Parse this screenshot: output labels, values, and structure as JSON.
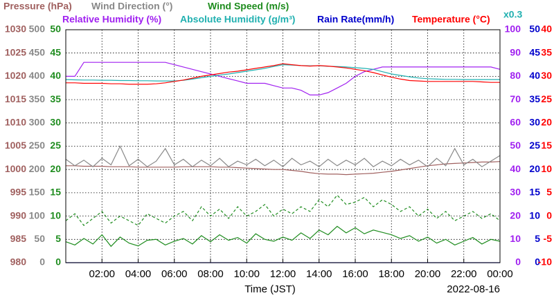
{
  "chart_data": {
    "type": "line",
    "x_label": "Time (JST)",
    "date": "2022-08-16",
    "axis_note": "x0.3",
    "grid": true,
    "x": [
      0,
      0.5,
      1,
      1.5,
      2,
      2.5,
      3,
      3.5,
      4,
      4.5,
      5,
      5.5,
      6,
      6.5,
      7,
      7.5,
      8,
      8.5,
      9,
      9.5,
      10,
      10.5,
      11,
      11.5,
      12,
      12.5,
      13,
      13.5,
      14,
      14.5,
      15,
      15.5,
      16,
      16.5,
      17,
      17.5,
      18,
      18.5,
      19,
      19.5,
      20,
      20.5,
      21,
      21.5,
      22,
      22.5,
      23,
      23.5,
      24
    ],
    "xlim": [
      0,
      24
    ],
    "xticks": [
      {
        "value": 2,
        "label": "02:00"
      },
      {
        "value": 4,
        "label": "04:00"
      },
      {
        "value": 6,
        "label": "06:00"
      },
      {
        "value": 8,
        "label": "08:00"
      },
      {
        "value": 10,
        "label": "10:00"
      },
      {
        "value": 12,
        "label": "12:00"
      },
      {
        "value": 14,
        "label": "14:00"
      },
      {
        "value": 16,
        "label": "16:00"
      },
      {
        "value": 18,
        "label": "18:00"
      },
      {
        "value": 20,
        "label": "20:00"
      },
      {
        "value": 22,
        "label": "22:00"
      },
      {
        "value": 24,
        "label": "00:00"
      }
    ],
    "axes": [
      {
        "side": "left",
        "color": "#a0605f",
        "lim": [
          980,
          1030
        ],
        "ticks": [
          980,
          985,
          990,
          995,
          1000,
          1005,
          1010,
          1015,
          1020,
          1025,
          1030
        ]
      },
      {
        "side": "left",
        "color": "#888888",
        "lim": [
          0,
          500
        ],
        "ticks": [
          0,
          50,
          100,
          150,
          200,
          250,
          300,
          350,
          400,
          450,
          500
        ]
      },
      {
        "side": "left",
        "color": "#1e8c1e",
        "lim": [
          0,
          50
        ],
        "ticks": [
          0,
          5,
          10,
          15,
          20,
          25,
          30,
          35,
          40,
          45,
          50
        ]
      },
      {
        "side": "right",
        "color": "#a020f0",
        "lim": [
          0,
          100
        ],
        "ticks": [
          0,
          10,
          20,
          30,
          40,
          50,
          60,
          70,
          80,
          90,
          100
        ]
      },
      {
        "side": "right",
        "color": "#0000cc",
        "lim": [
          0,
          50
        ],
        "ticks": [
          0,
          5,
          10,
          15,
          20,
          25,
          30,
          35,
          40,
          45,
          50
        ]
      },
      {
        "side": "right",
        "color": "#ff0000",
        "lim": [
          -10,
          40
        ],
        "ticks": [
          -10,
          -5,
          0,
          5,
          10,
          15,
          20,
          25,
          30,
          35,
          40
        ]
      }
    ],
    "series": [
      {
        "name": "Pressure (hPa)",
        "color": "#a0605f",
        "axis": 0,
        "values": [
          1000.8,
          1000.8,
          1000.7,
          1000.7,
          1000.7,
          1000.6,
          1000.6,
          1000.6,
          1000.5,
          1000.5,
          1000.5,
          1000.5,
          1000.5,
          1000.6,
          1000.6,
          1000.6,
          1000.6,
          1000.5,
          1000.5,
          1000.4,
          1000.3,
          1000.2,
          1000.1,
          1000.0,
          1000.0,
          999.8,
          999.6,
          999.3,
          999.1,
          999.0,
          999.0,
          998.9,
          999.0,
          999.1,
          999.2,
          999.4,
          999.6,
          999.9,
          1000.2,
          1000.5,
          1000.8,
          1001.0,
          1001.2,
          1001.3,
          1001.4,
          1001.5,
          1001.6,
          1001.6,
          1001.7
        ]
      },
      {
        "name": "Wind Direction (°)",
        "color": "#888888",
        "axis": 1,
        "values": [
          222,
          208,
          220,
          206,
          224,
          210,
          250,
          208,
          222,
          206,
          218,
          245,
          210,
          222,
          206,
          220,
          208,
          224,
          206,
          218,
          210,
          222,
          208,
          220,
          206,
          224,
          210,
          218,
          206,
          222,
          208,
          220,
          210,
          224,
          206,
          218,
          208,
          222,
          210,
          220,
          206,
          224,
          208,
          245,
          210,
          222,
          206,
          218,
          230
        ]
      },
      {
        "name": "Wind Speed (m/s)",
        "color": "#1e8c1e",
        "axis": 2,
        "values": [
          4.5,
          3.8,
          5.2,
          4.0,
          6.0,
          3.5,
          5.5,
          4.2,
          3.6,
          4.8,
          5.0,
          3.8,
          4.6,
          5.2,
          4.0,
          5.8,
          4.5,
          6.0,
          4.8,
          5.4,
          4.2,
          6.2,
          5.0,
          4.6,
          5.5,
          4.8,
          6.4,
          5.2,
          7.0,
          6.0,
          7.8,
          6.4,
          7.5,
          6.2,
          7.0,
          6.5,
          6.0,
          5.2,
          5.8,
          4.6,
          5.5,
          4.2,
          5.0,
          3.8,
          4.6,
          5.4,
          4.0,
          5.0,
          4.6
        ],
        "max_values": [
          9,
          10.5,
          8,
          9.5,
          11,
          8.5,
          10,
          9,
          8,
          10.5,
          9.5,
          8.5,
          10,
          11,
          9,
          12,
          10,
          11.5,
          9.5,
          12,
          10,
          11,
          12.5,
          10,
          11.5,
          10.5,
          12,
          11,
          13.5,
          12,
          14.5,
          12.5,
          13,
          14,
          12,
          13.5,
          12.5,
          11,
          12,
          10,
          11.5,
          9.5,
          11,
          9,
          10,
          11,
          9.5,
          10.5,
          9
        ]
      },
      {
        "name": "Relative Humidity (%)",
        "color": "#a020f0",
        "axis": 3,
        "values": [
          80,
          80,
          86,
          86,
          86,
          86,
          86,
          86,
          86,
          86,
          86,
          86,
          85,
          84,
          83,
          82,
          81,
          80,
          79,
          78,
          77,
          77,
          77,
          76,
          75,
          75,
          74,
          72,
          72,
          73,
          75,
          77,
          80,
          82,
          83,
          84,
          84,
          84,
          84,
          84,
          84,
          84,
          84,
          84,
          84,
          84,
          84,
          84,
          83
        ]
      },
      {
        "name": "Absolute Humidity (g/m³)",
        "color": "#20b0b0",
        "axis": 3,
        "values": [
          78.6,
          78.5,
          78.4,
          78.4,
          78.3,
          78.3,
          78.2,
          78.2,
          78.1,
          78.1,
          78.0,
          78.0,
          78.0,
          78.3,
          78.8,
          79.4,
          80.0,
          80.5,
          81.0,
          81.6,
          82.2,
          82.8,
          83.4,
          84.2,
          85.0,
          84.8,
          84.6,
          84.5,
          84.5,
          84.3,
          84.2,
          84.0,
          83.7,
          83.4,
          83.0,
          82.0,
          81.0,
          80.4,
          79.8,
          79.3,
          79.0,
          78.8,
          78.7,
          78.7,
          78.6,
          78.6,
          78.6,
          78.6,
          78.6
        ]
      },
      {
        "name": "Rain Rate(mm/h)",
        "color": "#0000cc",
        "axis": 4,
        "values": [
          0,
          0,
          0,
          0,
          0,
          0,
          0,
          0,
          0,
          0,
          0,
          0,
          0,
          0,
          0,
          0,
          0,
          0,
          0,
          0,
          0,
          0,
          0,
          0,
          0,
          0,
          0,
          0,
          0,
          0,
          0,
          0,
          0,
          0,
          0,
          0,
          0,
          0,
          0,
          0,
          0,
          0,
          0,
          0,
          0,
          0,
          0,
          0,
          0
        ]
      },
      {
        "name": "Temperature (°C)",
        "color": "#ff0000",
        "axis": 5,
        "values": [
          28.6,
          28.6,
          28.5,
          28.5,
          28.5,
          28.4,
          28.4,
          28.3,
          28.3,
          28.3,
          28.4,
          28.6,
          28.9,
          29.2,
          29.6,
          30.0,
          30.3,
          30.6,
          30.9,
          31.1,
          31.4,
          31.7,
          32.0,
          32.3,
          32.7,
          32.5,
          32.3,
          32.2,
          32.3,
          32.2,
          32.0,
          31.8,
          31.5,
          31.2,
          30.8,
          30.3,
          29.8,
          29.4,
          29.1,
          29.0,
          28.9,
          28.9,
          28.9,
          28.9,
          28.9,
          28.9,
          28.8,
          28.7,
          28.7
        ]
      }
    ]
  }
}
